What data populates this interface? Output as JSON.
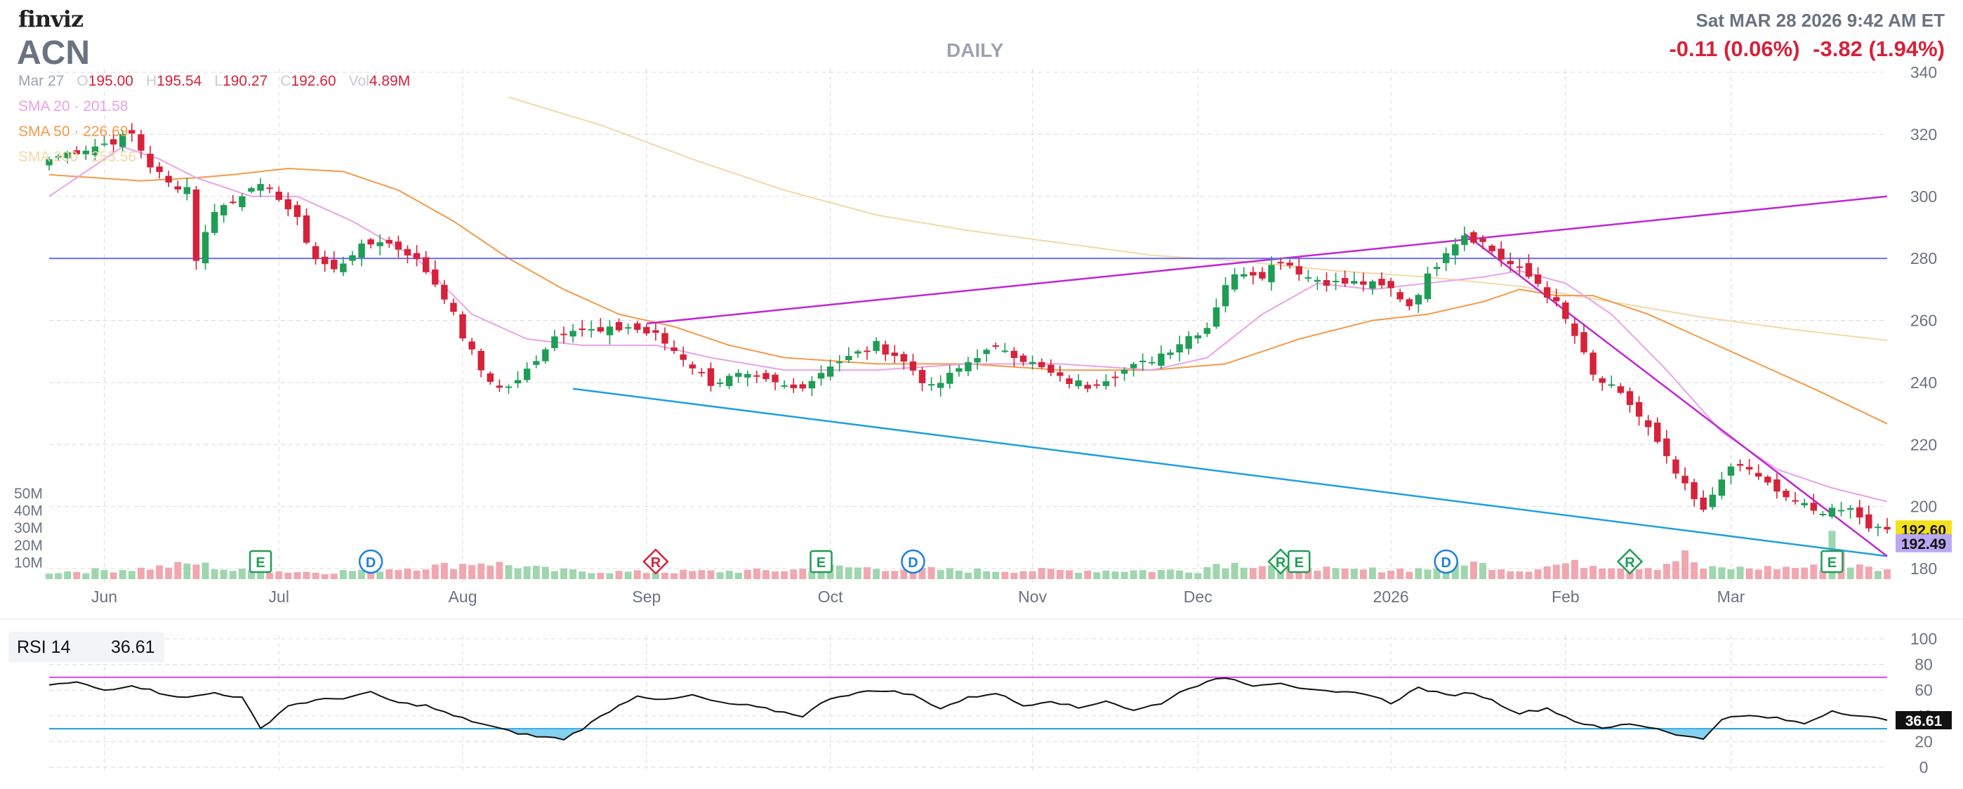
{
  "header": {
    "logo": "finviz",
    "ticker": "ACN",
    "period": "DAILY",
    "datetime": "Sat MAR 28 2026 9:42 AM ET",
    "change_pre": "-0.11 (0.06%)",
    "change_day": "-3.82 (1.94%)"
  },
  "ohlc": {
    "date": "Mar 27",
    "open_label": "O",
    "open": "195.00",
    "high_label": "H",
    "high": "195.54",
    "low_label": "L",
    "low": "190.27",
    "close_label": "C",
    "close": "192.60",
    "vol_label": "Vol",
    "vol": "4.89M"
  },
  "sma": {
    "sma20": "SMA 20 · 201.58",
    "sma50": "SMA 50 · 226.69",
    "sma200": "SMA 200 · 253.56"
  },
  "rsi": {
    "label": "RSI 14",
    "value": "36.61",
    "badge": "36.61"
  },
  "colors": {
    "up": "#1f9d55",
    "down": "#d6223a",
    "vol_up": "#9fd6ad",
    "vol_down": "#f1a7b0",
    "sma20": "#e9a3e6",
    "sma50": "#f39a4a",
    "sma200": "#f2d9a7",
    "trend_upper": "#c026d3",
    "trend_lower": "#1ea0dc",
    "horizontal": "#6d6df0",
    "rsi_line": "#111111",
    "rsi_fill": "#5bc3ea",
    "rsi_upper": "#d946ef",
    "rsi_lower": "#1ea0dc",
    "last_badge": "#f5e11b",
    "second_badge": "#b9a9f2"
  },
  "chart_data": [
    {
      "type": "candlestick",
      "title": "ACN",
      "ylim": [
        180,
        340
      ],
      "y_ticks": [
        180,
        200,
        220,
        240,
        260,
        280,
        300,
        320,
        340
      ],
      "x_labels": [
        "Jun",
        "Jul",
        "Aug",
        "Sep",
        "Oct",
        "Nov",
        "Dec",
        "2026",
        "Feb",
        "Mar"
      ],
      "x_label_index": [
        6,
        25,
        45,
        65,
        85,
        107,
        125,
        146,
        165,
        183
      ],
      "volume_ticks": [
        "50M",
        "40M",
        "30M",
        "20M",
        "10M"
      ],
      "volume_ylim": [
        0,
        50
      ],
      "close_anchors": [
        [
          0,
          312
        ],
        [
          2,
          314
        ],
        [
          6,
          317
        ],
        [
          9,
          320
        ],
        [
          11,
          310
        ],
        [
          13,
          304
        ],
        [
          15,
          303
        ],
        [
          16,
          280
        ],
        [
          18,
          296
        ],
        [
          20,
          298
        ],
        [
          22,
          304
        ],
        [
          25,
          300
        ],
        [
          27,
          292
        ],
        [
          29,
          280
        ],
        [
          31,
          276
        ],
        [
          33,
          282
        ],
        [
          36,
          286
        ],
        [
          39,
          282
        ],
        [
          41,
          276
        ],
        [
          43,
          268
        ],
        [
          45,
          255
        ],
        [
          47,
          244
        ],
        [
          49,
          238
        ],
        [
          51,
          240
        ],
        [
          53,
          248
        ],
        [
          55,
          255
        ],
        [
          57,
          258
        ],
        [
          60,
          256
        ],
        [
          63,
          258
        ],
        [
          66,
          255
        ],
        [
          69,
          248
        ],
        [
          72,
          240
        ],
        [
          75,
          242
        ],
        [
          78,
          240
        ],
        [
          81,
          238
        ],
        [
          83,
          241
        ],
        [
          85,
          246
        ],
        [
          87,
          248
        ],
        [
          90,
          252
        ],
        [
          92,
          249
        ],
        [
          94,
          244
        ],
        [
          96,
          238
        ],
        [
          98,
          242
        ],
        [
          101,
          249
        ],
        [
          104,
          251
        ],
        [
          107,
          246
        ],
        [
          110,
          241
        ],
        [
          113,
          239
        ],
        [
          116,
          243
        ],
        [
          119,
          246
        ],
        [
          122,
          251
        ],
        [
          124,
          255
        ],
        [
          126,
          258
        ],
        [
          128,
          272
        ],
        [
          130,
          276
        ],
        [
          132,
          275
        ],
        [
          134,
          280
        ],
        [
          137,
          274
        ],
        [
          140,
          272
        ],
        [
          143,
          272
        ],
        [
          146,
          270
        ],
        [
          148,
          265
        ],
        [
          150,
          274
        ],
        [
          152,
          283
        ],
        [
          154,
          288
        ],
        [
          156,
          285
        ],
        [
          158,
          280
        ],
        [
          160,
          276
        ],
        [
          162,
          272
        ],
        [
          164,
          265
        ],
        [
          166,
          255
        ],
        [
          168,
          242
        ],
        [
          170,
          238
        ],
        [
          172,
          233
        ],
        [
          174,
          225
        ],
        [
          176,
          215
        ],
        [
          178,
          206
        ],
        [
          180,
          198
        ],
        [
          182,
          210
        ],
        [
          184,
          213
        ],
        [
          186,
          210
        ],
        [
          188,
          204
        ],
        [
          190,
          202
        ],
        [
          192,
          198
        ],
        [
          194,
          200
        ],
        [
          196,
          198
        ],
        [
          197,
          196
        ],
        [
          198,
          194
        ],
        [
          199,
          193
        ],
        [
          200,
          192.6
        ]
      ],
      "volume_anchors": [
        [
          0,
          4
        ],
        [
          10,
          6
        ],
        [
          16,
          9
        ],
        [
          20,
          5
        ],
        [
          30,
          4
        ],
        [
          44,
          8
        ],
        [
          47,
          10
        ],
        [
          55,
          5
        ],
        [
          64,
          4
        ],
        [
          80,
          5
        ],
        [
          85,
          7
        ],
        [
          100,
          5
        ],
        [
          125,
          5
        ],
        [
          127,
          9
        ],
        [
          137,
          8
        ],
        [
          140,
          5
        ],
        [
          150,
          6
        ],
        [
          154,
          10
        ],
        [
          160,
          5
        ],
        [
          165,
          9
        ],
        [
          175,
          7
        ],
        [
          178,
          14
        ],
        [
          180,
          6
        ],
        [
          193,
          7
        ],
        [
          194,
          28
        ],
        [
          196,
          8
        ],
        [
          200,
          5
        ]
      ],
      "sma20_anchors": [
        [
          0,
          300
        ],
        [
          8,
          316
        ],
        [
          12,
          312
        ],
        [
          16,
          306
        ],
        [
          22,
          300
        ],
        [
          27,
          300
        ],
        [
          33,
          292
        ],
        [
          40,
          280
        ],
        [
          46,
          262
        ],
        [
          52,
          254
        ],
        [
          58,
          252
        ],
        [
          66,
          252
        ],
        [
          72,
          248
        ],
        [
          80,
          244
        ],
        [
          90,
          244
        ],
        [
          100,
          246
        ],
        [
          110,
          246
        ],
        [
          120,
          244
        ],
        [
          126,
          248
        ],
        [
          132,
          262
        ],
        [
          138,
          272
        ],
        [
          144,
          270
        ],
        [
          150,
          272
        ],
        [
          156,
          274
        ],
        [
          160,
          276
        ],
        [
          165,
          272
        ],
        [
          170,
          262
        ],
        [
          176,
          244
        ],
        [
          182,
          224
        ],
        [
          188,
          212
        ],
        [
          194,
          206
        ],
        [
          200,
          201.58
        ]
      ],
      "sma50_anchors": [
        [
          0,
          307
        ],
        [
          10,
          305
        ],
        [
          16,
          306
        ],
        [
          20,
          307
        ],
        [
          26,
          309
        ],
        [
          32,
          308
        ],
        [
          38,
          302
        ],
        [
          44,
          292
        ],
        [
          50,
          280
        ],
        [
          56,
          270
        ],
        [
          62,
          262
        ],
        [
          68,
          258
        ],
        [
          74,
          252
        ],
        [
          80,
          248
        ],
        [
          90,
          246
        ],
        [
          100,
          246
        ],
        [
          110,
          244
        ],
        [
          120,
          244
        ],
        [
          128,
          246
        ],
        [
          136,
          254
        ],
        [
          144,
          260
        ],
        [
          150,
          262
        ],
        [
          156,
          266
        ],
        [
          160,
          270
        ],
        [
          164,
          268
        ],
        [
          168,
          268
        ],
        [
          174,
          262
        ],
        [
          180,
          254
        ],
        [
          186,
          246
        ],
        [
          192,
          238
        ],
        [
          200,
          226.69
        ]
      ],
      "sma200_anchors": [
        [
          50,
          332
        ],
        [
          60,
          323
        ],
        [
          70,
          312
        ],
        [
          80,
          302
        ],
        [
          90,
          294
        ],
        [
          100,
          289
        ],
        [
          110,
          285
        ],
        [
          120,
          281
        ],
        [
          130,
          279
        ],
        [
          140,
          276
        ],
        [
          150,
          274
        ],
        [
          160,
          271
        ],
        [
          170,
          266
        ],
        [
          180,
          261
        ],
        [
          190,
          257
        ],
        [
          200,
          253.56
        ]
      ],
      "drawings": [
        {
          "kind": "line",
          "name": "upper-trendline",
          "p1": [
            65,
            259
          ],
          "p2": [
            200,
            300
          ]
        },
        {
          "kind": "line",
          "name": "lower-trendline",
          "p1": [
            57,
            238
          ],
          "p2": [
            200,
            184
          ]
        },
        {
          "kind": "line",
          "name": "falling-trendline",
          "p1": [
            154,
            288
          ],
          "p2": [
            200,
            184
          ]
        },
        {
          "kind": "hline",
          "name": "resistance-line",
          "y": 280
        }
      ],
      "events": [
        {
          "type": "E",
          "index": 23,
          "shape": "square"
        },
        {
          "type": "D",
          "index": 35,
          "shape": "circle"
        },
        {
          "type": "R",
          "index": 66,
          "shape": "diamond"
        },
        {
          "type": "E",
          "index": 84,
          "shape": "square"
        },
        {
          "type": "D",
          "index": 94,
          "shape": "circle"
        },
        {
          "type": "R",
          "index": 134,
          "shape": "diamond"
        },
        {
          "type": "E",
          "index": 136,
          "shape": "square"
        },
        {
          "type": "D",
          "index": 152,
          "shape": "circle"
        },
        {
          "type": "R",
          "index": 172,
          "shape": "diamond"
        },
        {
          "type": "E",
          "index": 194,
          "shape": "square"
        }
      ],
      "price_badges": [
        {
          "value": "192.60",
          "y": 192.6,
          "kind": "last"
        },
        {
          "value": "192.49",
          "y": 188.2,
          "kind": "second"
        }
      ]
    },
    {
      "type": "line",
      "title": "RSI 14",
      "ylim": [
        0,
        100
      ],
      "y_ticks": [
        0,
        20,
        40,
        60,
        80,
        100
      ],
      "upper_level": 70,
      "lower_level": 30,
      "rsi_anchors": [
        [
          0,
          64
        ],
        [
          3,
          66
        ],
        [
          6,
          60
        ],
        [
          9,
          64
        ],
        [
          12,
          58
        ],
        [
          15,
          54
        ],
        [
          18,
          58
        ],
        [
          21,
          54
        ],
        [
          23,
          30
        ],
        [
          26,
          48
        ],
        [
          29,
          52
        ],
        [
          32,
          54
        ],
        [
          35,
          58
        ],
        [
          38,
          50
        ],
        [
          41,
          48
        ],
        [
          44,
          40
        ],
        [
          47,
          34
        ],
        [
          50,
          28
        ],
        [
          53,
          24
        ],
        [
          56,
          22
        ],
        [
          58,
          30
        ],
        [
          61,
          44
        ],
        [
          64,
          56
        ],
        [
          67,
          52
        ],
        [
          70,
          56
        ],
        [
          73,
          50
        ],
        [
          76,
          48
        ],
        [
          79,
          44
        ],
        [
          82,
          40
        ],
        [
          85,
          54
        ],
        [
          88,
          58
        ],
        [
          91,
          60
        ],
        [
          94,
          56
        ],
        [
          97,
          46
        ],
        [
          100,
          54
        ],
        [
          103,
          58
        ],
        [
          106,
          48
        ],
        [
          109,
          52
        ],
        [
          112,
          46
        ],
        [
          115,
          52
        ],
        [
          118,
          44
        ],
        [
          121,
          50
        ],
        [
          124,
          62
        ],
        [
          126,
          66
        ],
        [
          128,
          70
        ],
        [
          131,
          64
        ],
        [
          134,
          66
        ],
        [
          137,
          60
        ],
        [
          140,
          58
        ],
        [
          143,
          58
        ],
        [
          146,
          50
        ],
        [
          149,
          62
        ],
        [
          152,
          56
        ],
        [
          155,
          58
        ],
        [
          157,
          52
        ],
        [
          160,
          42
        ],
        [
          163,
          46
        ],
        [
          166,
          36
        ],
        [
          169,
          30
        ],
        [
          172,
          34
        ],
        [
          175,
          30
        ],
        [
          178,
          24
        ],
        [
          180,
          22
        ],
        [
          182,
          38
        ],
        [
          185,
          40
        ],
        [
          188,
          38
        ],
        [
          191,
          34
        ],
        [
          194,
          44
        ],
        [
          197,
          40
        ],
        [
          200,
          36.61
        ]
      ]
    }
  ]
}
